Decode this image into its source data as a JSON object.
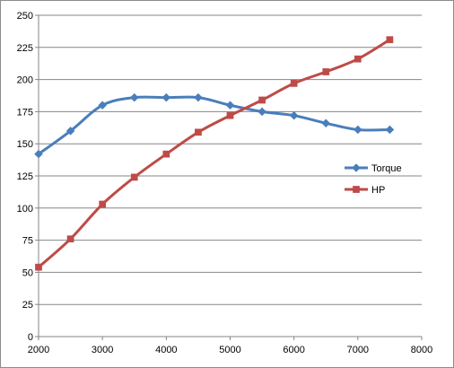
{
  "chart_data": {
    "type": "line",
    "title": "",
    "xlabel": "",
    "ylabel": "",
    "x": [
      2000,
      2500,
      3000,
      3500,
      4000,
      4500,
      5000,
      5500,
      6000,
      6500,
      7000,
      7500
    ],
    "xlim": [
      2000,
      8000
    ],
    "ylim": [
      0,
      250
    ],
    "xticks": [
      "2000",
      "3000",
      "4000",
      "5000",
      "6000",
      "7000",
      "8000"
    ],
    "yticks": [
      "0",
      "25",
      "50",
      "75",
      "100",
      "125",
      "150",
      "175",
      "200",
      "225",
      "250"
    ],
    "grid": "horizontal",
    "legend_position": "right",
    "smooth": true,
    "series": [
      {
        "name": "Torque",
        "color": "#4a7ebb",
        "marker": "diamond",
        "values": [
          142,
          160,
          180,
          186,
          186,
          186,
          180,
          175,
          172,
          166,
          161,
          161
        ]
      },
      {
        "name": "HP",
        "color": "#be4b48",
        "marker": "square",
        "values": [
          54,
          76,
          103,
          124,
          142,
          159,
          172,
          184,
          197,
          206,
          216,
          231
        ]
      }
    ]
  }
}
